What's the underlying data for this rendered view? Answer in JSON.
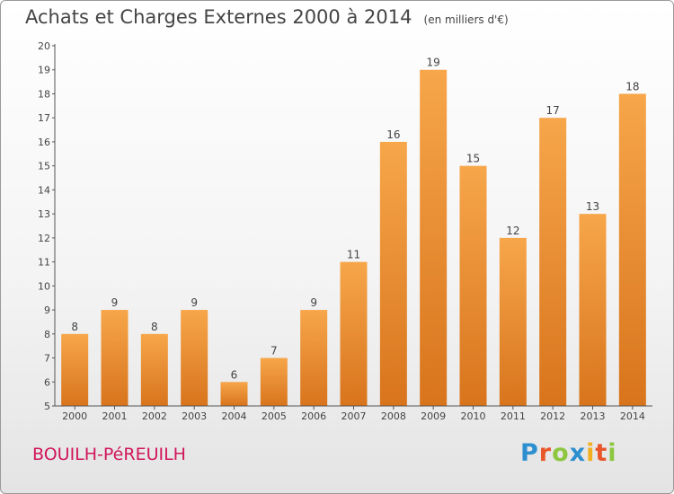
{
  "chart_data": {
    "type": "bar",
    "title": "Achats et Charges Externes 2000 à 2014",
    "subtitle": "(en milliers d'€)",
    "categories": [
      "2000",
      "2001",
      "2002",
      "2003",
      "2004",
      "2005",
      "2006",
      "2007",
      "2008",
      "2009",
      "2010",
      "2011",
      "2012",
      "2013",
      "2014"
    ],
    "values": [
      8,
      9,
      8,
      9,
      6,
      7,
      9,
      11,
      16,
      19,
      15,
      12,
      17,
      13,
      18
    ],
    "ylim": [
      5,
      20
    ],
    "yticks": [
      5,
      6,
      7,
      8,
      9,
      10,
      11,
      12,
      13,
      14,
      15,
      16,
      17,
      18,
      19,
      20
    ],
    "grid": false,
    "bar_color_top": "#f7a64a",
    "bar_color_bottom": "#d8741c",
    "xlabel": "",
    "ylabel": ""
  },
  "commune": "BOUILH-PéREUILH",
  "logo": {
    "text": "Proxiti",
    "letter_colors": [
      "#2e8fd0",
      "#e8562a",
      "#8dc63f",
      "#2e8fd0",
      "#f2b01e",
      "#e8562a",
      "#8dc63f"
    ]
  },
  "colors": {
    "axis": "#555555",
    "text": "#444444",
    "commune": "#d0155a"
  }
}
